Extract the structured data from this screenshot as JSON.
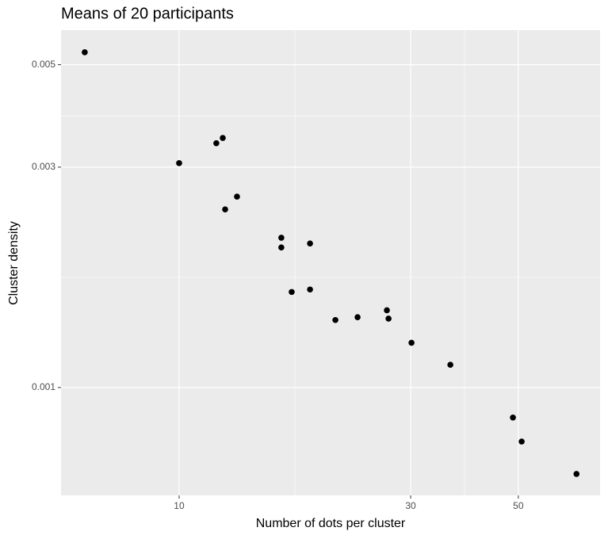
{
  "chart_data": {
    "type": "scatter",
    "title": "Means of 20 participants",
    "x_label": "Number of dots per cluster",
    "y_label": "Cluster density",
    "x": [
      6.39,
      10,
      11.93,
      12.3,
      12.44,
      13.16,
      16.24,
      16.24,
      18.61,
      17.06,
      18.61,
      20.99,
      23.32,
      26.8,
      27.01,
      30.12,
      36.22,
      48.74,
      50.8,
      65.9
    ],
    "values": [
      0.00532,
      0.00306,
      0.00338,
      0.00347,
      0.00243,
      0.00259,
      0.00211,
      0.00201,
      0.00205,
      0.00161,
      0.00163,
      0.0014,
      0.00142,
      0.00147,
      0.00141,
      0.00125,
      0.00112,
      0.000861,
      0.000764,
      0.00065
    ],
    "color": "#000000",
    "xlim": [
      5.71,
      73.7
    ],
    "ylim": [
      0.000584,
      0.00594
    ],
    "xticks": [
      10,
      30,
      50
    ],
    "yticks": [
      0.001,
      0.003,
      0.005
    ],
    "x_log": true,
    "y_log": true,
    "grid": true
  }
}
